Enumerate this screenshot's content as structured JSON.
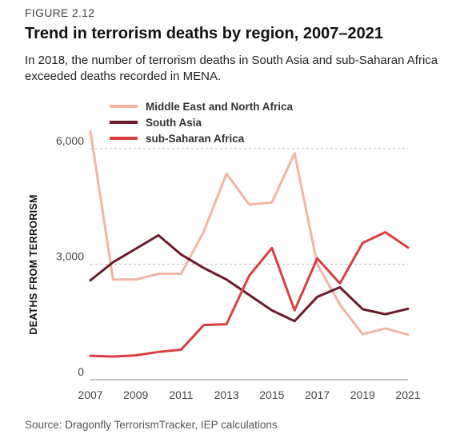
{
  "figure_label": "FIGURE 2.12",
  "title": "Trend in terrorism deaths by region, 2007–2021",
  "subtitle": "In 2018, the number of terrorism deaths in South Asia and sub-Saharan Africa exceeded deaths recorded in MENA.",
  "source": "Source: Dragonfly TerrorismTracker, IEP calculations",
  "chart_data": {
    "type": "line",
    "ylabel": "DEATHS FROM TERRORISM",
    "xlabel": "",
    "x": [
      2007,
      2008,
      2009,
      2010,
      2011,
      2012,
      2013,
      2014,
      2015,
      2016,
      2017,
      2018,
      2019,
      2020,
      2021
    ],
    "x_ticks": [
      "2007",
      "2009",
      "2011",
      "2013",
      "2015",
      "2017",
      "2019",
      "2021"
    ],
    "x_tick_values": [
      2007,
      2009,
      2011,
      2013,
      2015,
      2017,
      2019,
      2021
    ],
    "y_ticks": [
      "0",
      "3,000",
      "6,000"
    ],
    "y_tick_values": [
      0,
      3000,
      6000
    ],
    "xlim": [
      2007,
      2021
    ],
    "ylim": [
      0,
      6000
    ],
    "grid": "horizontal dashed",
    "legend_position": "top-left",
    "series": [
      {
        "name": "Middle East and North Africa",
        "color": "#f0b6a2",
        "values": [
          6450,
          2600,
          2600,
          2750,
          2750,
          3850,
          5350,
          4550,
          4600,
          5880,
          3000,
          1950,
          1180,
          1330,
          1170
        ]
      },
      {
        "name": "South Asia",
        "color": "#6b1a2a",
        "values": [
          2580,
          3050,
          3400,
          3750,
          3250,
          2900,
          2600,
          2200,
          1800,
          1520,
          2150,
          2400,
          1830,
          1700,
          1840
        ]
      },
      {
        "name": "sub-Saharan Africa",
        "color": "#d93f3f",
        "values": [
          620,
          600,
          630,
          720,
          780,
          1420,
          1440,
          2700,
          3420,
          1800,
          3150,
          2500,
          3550,
          3830,
          3430
        ]
      }
    ]
  }
}
